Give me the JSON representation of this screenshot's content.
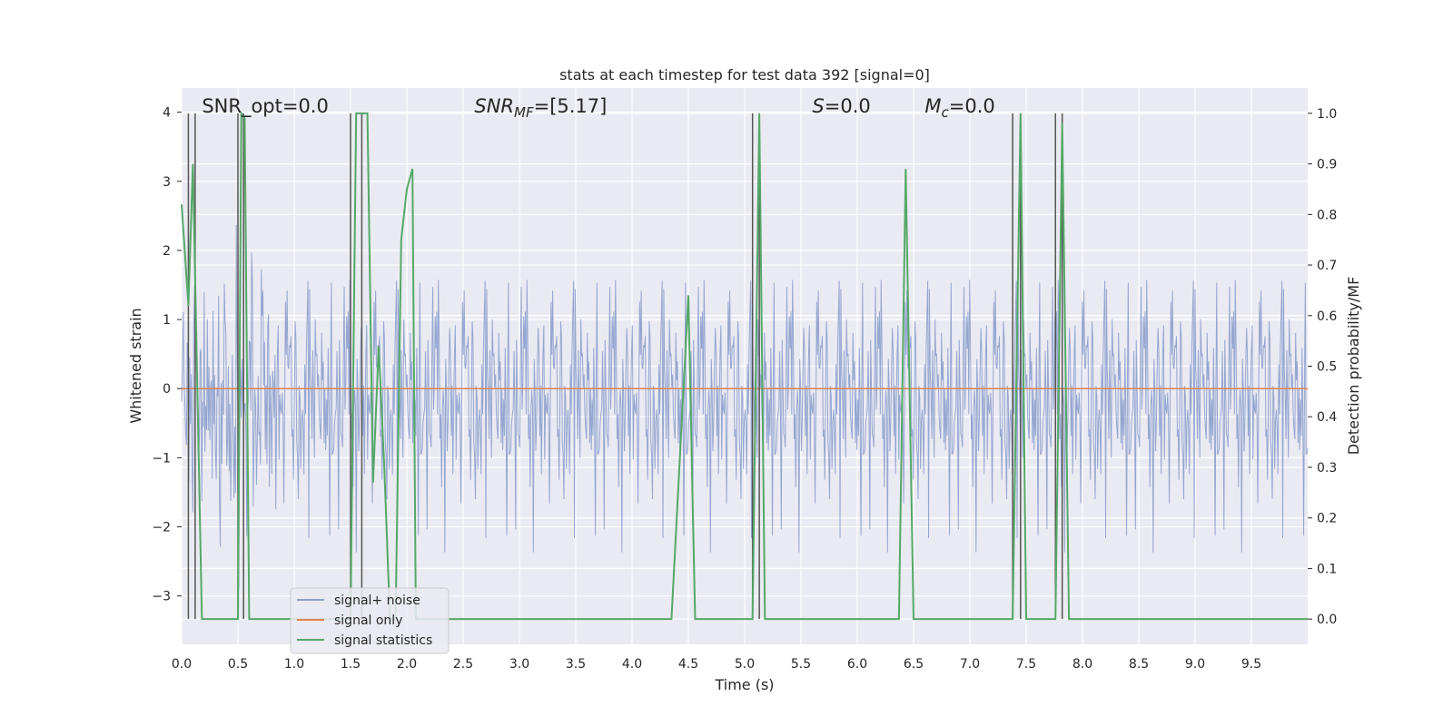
{
  "chart_data": {
    "type": "line",
    "title": "stats at each timestep for test data 392 [signal=0]",
    "xlabel": "Time (s)",
    "ylabel": "Whitened strain",
    "ylabel_right": "Detection probability/MF",
    "xlim": [
      0,
      10
    ],
    "ylim": [
      -3.7,
      4.35
    ],
    "ylim_right": [
      -0.05,
      1.05
    ],
    "x_ticks": [
      0.0,
      0.5,
      1.0,
      1.5,
      2.0,
      2.5,
      3.0,
      3.5,
      4.0,
      4.5,
      5.0,
      5.5,
      6.0,
      6.5,
      7.0,
      7.5,
      8.0,
      8.5,
      9.0,
      9.5
    ],
    "x_tick_labels": [
      "0.0",
      "0.5",
      "1.0",
      "1.5",
      "2.0",
      "2.5",
      "3.0",
      "3.5",
      "4.0",
      "4.5",
      "5.0",
      "5.5",
      "6.0",
      "6.5",
      "7.0",
      "7.5",
      "8.0",
      "8.5",
      "9.0",
      "9.5"
    ],
    "y_ticks": [
      -3,
      -2,
      -1,
      0,
      1,
      2,
      3,
      4
    ],
    "y_tick_labels": [
      "−3",
      "−2",
      "−1",
      "0",
      "1",
      "2",
      "3",
      "4"
    ],
    "y_right_ticks": [
      0.0,
      0.1,
      0.2,
      0.3,
      0.4,
      0.5,
      0.6,
      0.7,
      0.8,
      0.9,
      1.0
    ],
    "y_right_tick_labels": [
      "0.0",
      "0.1",
      "0.2",
      "0.3",
      "0.4",
      "0.5",
      "0.6",
      "0.7",
      "0.8",
      "0.9",
      "1.0"
    ],
    "grid": true,
    "legend_placement": "lower-left",
    "annotations": [
      {
        "text": "SNR_opt=0.0",
        "x": 0.18
      },
      {
        "text": "SNR_MF=[5.17]",
        "x": 2.6
      },
      {
        "text": "S=0.0",
        "x": 5.6
      },
      {
        "text": "M_c=0.0",
        "x": 6.6
      }
    ],
    "series": [
      {
        "name": "signal+ noise",
        "color": "#8c9fcc",
        "axis": "left",
        "description_range": [
          -3.3,
          4.0
        ],
        "n_samples": 1400,
        "typical_amplitude": 1.1
      },
      {
        "name": "signal only",
        "color": "#dd8452",
        "axis": "left",
        "x": [
          0,
          10
        ],
        "values": [
          0,
          0
        ]
      },
      {
        "name": "signal statistics",
        "color": "#55a868",
        "axis": "right",
        "x": [
          0.0,
          0.06,
          0.1,
          0.14,
          0.18,
          0.5,
          0.53,
          0.56,
          0.6,
          1.5,
          1.55,
          1.6,
          1.65,
          1.7,
          1.75,
          1.8,
          1.85,
          1.9,
          1.95,
          2.0,
          2.05,
          2.08,
          2.12,
          4.35,
          4.5,
          4.56,
          5.07,
          5.13,
          5.18,
          6.37,
          6.43,
          6.5,
          7.38,
          7.45,
          7.5,
          7.76,
          7.82,
          7.88,
          10.0
        ],
        "values": [
          0.82,
          0.62,
          0.9,
          0.45,
          0.0,
          0.0,
          1.0,
          0.99,
          0.0,
          0.0,
          1.0,
          1.0,
          1.0,
          0.27,
          0.54,
          0.3,
          0.0,
          0.0,
          0.75,
          0.85,
          0.89,
          0.0,
          0.0,
          0.0,
          0.64,
          0.0,
          0.0,
          1.0,
          0.0,
          0.0,
          0.89,
          0.0,
          0.0,
          1.0,
          0.0,
          0.0,
          0.98,
          0.0,
          0.0
        ]
      }
    ],
    "vertical_lines": {
      "color": "#555555",
      "x": [
        0.06,
        0.12,
        0.5,
        0.55,
        1.5,
        1.6,
        5.07,
        5.13,
        7.38,
        7.45,
        7.76,
        7.82
      ]
    },
    "legend": [
      "signal+ noise",
      "signal only",
      "signal statistics"
    ]
  }
}
